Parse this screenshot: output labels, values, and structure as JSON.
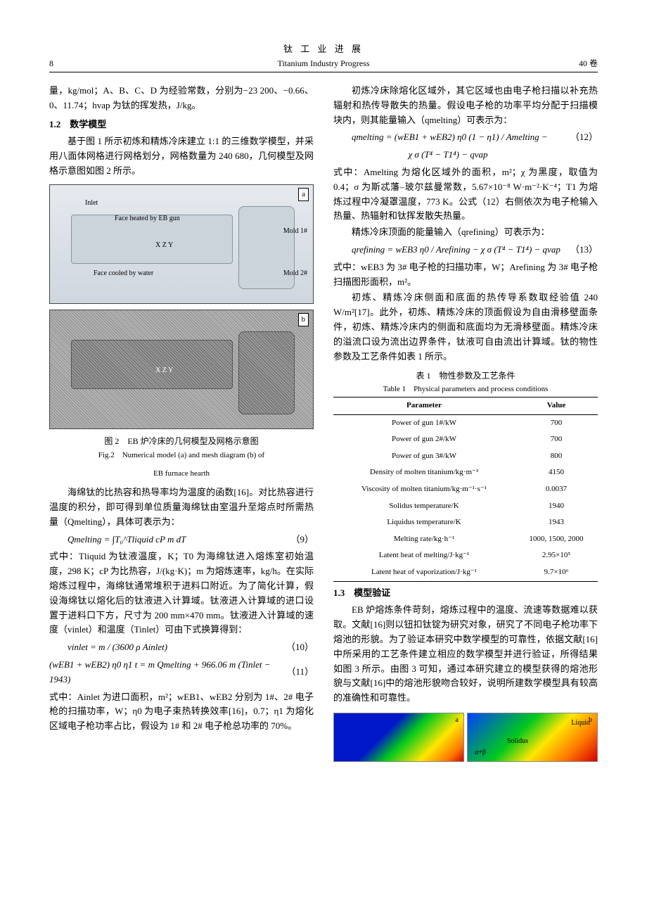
{
  "header": {
    "page": "8",
    "journal_cn": "钛 工 业 进 展",
    "journal_en": "Titanium Industry Progress",
    "volume": "40 卷"
  },
  "left": {
    "p0": "量，kg/mol；A、B、C、D 为经验常数，分别为−23 200、−0.66、0、11.74；hvap 为钛的挥发热，J/kg。",
    "sec12": "1.2　数学模型",
    "p1": "基于图 1 所示初炼和精炼冷床建立 1:1 的三维数学模型，并采用八面体网格进行网格划分，网格数量为 240 680，几何模型及网格示意图如图 2 所示。",
    "fig2": {
      "label_a": "a",
      "label_b": "b",
      "annot_inlet": "Inlet",
      "annot_face_eb": "Face heated by EB gun",
      "annot_face_water": "Face cooled by water",
      "annot_mold1": "Mold 1#",
      "annot_mold2": "Mold 2#",
      "axis": "X Z Y",
      "caption_cn": "图 2　EB 炉冷床的几何模型及网格示意图",
      "caption_en1": "Fig.2　Numerical model (a) and mesh diagram (b) of",
      "caption_en2": "EB furnace hearth"
    },
    "p2": "海绵钛的比热容和热导率均为温度的函数[16]。对比热容进行温度的积分，即可得到单位质量海绵钛由室温升至熔点时所需热量（Qmelting），具体可表示为：",
    "eq9math": "Qmelting = ∫T₀^Tliquid cP m dT",
    "eq9num": "（9）",
    "p3": "式中：Tliquid 为钛液温度，K；T0 为海绵钛进入熔炼室初始温度，298 K；cP 为比热容，J/(kg·K)；m 为熔炼速率，kg/h。在实际熔炼过程中，海绵钛通常堆积于进料口附近。为了简化计算，假设海绵钛以熔化后的钛液进入计算域。钛液进入计算域的进口设置于进料口下方，尺寸为 200 mm×470 mm。钛液进入计算域的速度（vinlet）和温度（Tinlet）可由下式换算得到：",
    "eq10math": "vinlet = m / (3600 ρ Ainlet)",
    "eq10num": "（10）",
    "eq11math": "(wEB1 + wEB2) η0 η1 t = m Qmelting + 966.06 m (Tinlet − 1943)",
    "eq11num": "（11）",
    "p4": "式中：Ainlet 为进口面积，m²；wEB1、wEB2 分别为 1#、2# 电子枪的扫描功率，W；η0 为电子束热转换效率[16]，0.7；η1 为熔化区域电子枪功率占比，假设为 1# 和 2# 电子枪总功率的 70%。"
  },
  "right": {
    "p5": "初炼冷床除熔化区域外，其它区域也由电子枪扫描以补充热辐射和热传导散失的热量。假设电子枪的功率平均分配于扫描模块内，则其能量输入（qmelting）可表示为：",
    "eq12_l1": "qmelting = (wEB1 + wEB2) η0 (1 − η1) / Amelting −",
    "eq12_l2": "χ σ (T⁴ − T1⁴) − qvap",
    "eq12num": "（12）",
    "p6": "式中：Amelting 为熔化区域外的面积，m²；χ 为黑度，取值为 0.4；σ 为斯忒藩–玻尔兹曼常数，5.67×10⁻⁸ W·m⁻²·K⁻⁴；T1 为熔炼过程中冷凝罩温度，773 K。公式（12）右侧依次为电子枪输入热量、热辐射和钛挥发散失热量。",
    "p7": "精炼冷床顶面的能量输入（qrefining）可表示为：",
    "eq13math": "qrefining = wEB3 η0 / Arefining − χ σ (T⁴ − T1⁴) − qvap",
    "eq13num": "（13）",
    "p8": "式中：wEB3 为 3# 电子枪的扫描功率，W；Arefining 为 3# 电子枪扫描图形面积，m²。",
    "p9": "初炼、精炼冷床侧面和底面的热传导系数取经验值 240 W/m²[17]。此外，初炼、精炼冷床的顶面假设为自由滑移壁面条件，初炼、精炼冷床内的侧面和底面均为无滑移壁面。精炼冷床的溢流口设为流出边界条件，钛液可自由流出计算域。钛的物性参数及工艺条件如表 1 所示。",
    "table1": {
      "title_cn": "表 1　物性参数及工艺条件",
      "title_en": "Table 1　Physical parameters and process conditions",
      "head_param": "Parameter",
      "head_value": "Value",
      "rows": [
        {
          "p": "Power of gun 1#/kW",
          "v": "700"
        },
        {
          "p": "Power of gun 2#/kW",
          "v": "700"
        },
        {
          "p": "Power of gun 3#/kW",
          "v": "800"
        },
        {
          "p": "Density of molten titanium/kg·m⁻³",
          "v": "4150"
        },
        {
          "p": "Viscosity of molten titanium/kg·m⁻¹·s⁻¹",
          "v": "0.0037"
        },
        {
          "p": "Solidus temperature/K",
          "v": "1940"
        },
        {
          "p": "Liquidus temperature/K",
          "v": "1943"
        },
        {
          "p": "Melting rate/kg·h⁻¹",
          "v": "1000, 1500, 2000"
        },
        {
          "p": "Latent heat of melting/J·kg⁻¹",
          "v": "2.95×10⁵"
        },
        {
          "p": "Latent heat of vaporization/J·kg⁻¹",
          "v": "9.7×10⁶"
        }
      ]
    },
    "sec13": "1.3　模型验证",
    "p10": "EB 炉熔炼条件苛刻，熔炼过程中的温度、流速等数据难以获取。文献[16]则以钮扣钛锭为研究对象，研究了不同电子枪功率下熔池的形貌。为了验证本研究中数学模型的可靠性，依据文献[16]中所采用的工艺条件建立相应的数学模型并进行验证，所得结果如图 3 所示。由图 3 可知，通过本研究建立的模型获得的熔池形貌与文献[16]中的熔池形貌吻合较好，说明所建数学模型具有较高的准确性和可靠性。",
    "fig3": {
      "lbl_a": "a",
      "lbl_b": "b",
      "txt_liquid": "Liquid",
      "txt_solidus": "Solidus",
      "txt_ab": "α+β"
    }
  }
}
